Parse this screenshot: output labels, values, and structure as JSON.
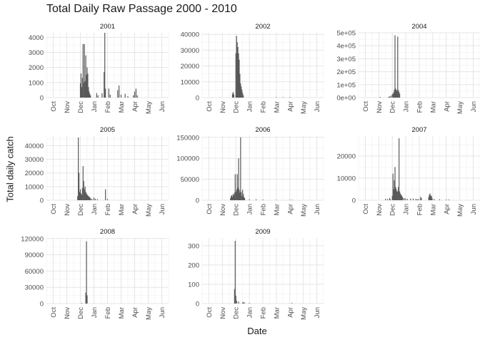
{
  "chart_data": {
    "type": "bar",
    "title": "Total Daily Raw Passage 2000 - 2010",
    "xlabel": "Date",
    "ylabel": "Total daily catch",
    "x_ticks": [
      "Oct",
      "Nov",
      "Dec",
      "Jan",
      "Feb",
      "Mar",
      "Apr",
      "May",
      "Jun"
    ],
    "x_range": [
      "Oct",
      "Jun"
    ],
    "grid": true,
    "bar_color": "#595959",
    "panels": [
      {
        "name": "2001",
        "ylim": [
          0,
          4300
        ],
        "y_ticks": [
          0,
          1000,
          2000,
          3000,
          4000
        ],
        "y_tick_labels": [
          "0",
          "1000",
          "2000",
          "3000",
          "4000"
        ],
        "bars": [
          [
            2.0,
            950
          ],
          [
            2.05,
            1600
          ],
          [
            2.1,
            700
          ],
          [
            2.15,
            1300
          ],
          [
            2.2,
            3550
          ],
          [
            2.25,
            1000
          ],
          [
            2.3,
            3550
          ],
          [
            2.35,
            1100
          ],
          [
            2.4,
            2800
          ],
          [
            2.45,
            1500
          ],
          [
            2.5,
            2000
          ],
          [
            2.55,
            1600
          ],
          [
            2.6,
            700
          ],
          [
            2.65,
            400
          ],
          [
            2.7,
            250
          ],
          [
            2.75,
            150
          ],
          [
            3.2,
            300
          ],
          [
            3.3,
            150
          ],
          [
            3.6,
            300
          ],
          [
            3.75,
            1700
          ],
          [
            3.8,
            4300
          ],
          [
            3.85,
            600
          ],
          [
            4.1,
            600
          ],
          [
            4.2,
            200
          ],
          [
            4.75,
            500
          ],
          [
            4.85,
            800
          ],
          [
            5.0,
            200
          ],
          [
            5.3,
            250
          ],
          [
            5.5,
            100
          ],
          [
            5.9,
            150
          ],
          [
            6.0,
            400
          ],
          [
            6.1,
            600
          ],
          [
            6.2,
            150
          ]
        ]
      },
      {
        "name": "2002",
        "ylim": [
          0,
          41000
        ],
        "y_ticks": [
          0,
          10000,
          20000,
          30000,
          40000
        ],
        "y_tick_labels": [
          "0",
          "10000",
          "20000",
          "30000",
          "40000"
        ],
        "bars": [
          [
            1.75,
            2500
          ],
          [
            1.8,
            3500
          ],
          [
            1.85,
            2000
          ],
          [
            2.0,
            28000
          ],
          [
            2.05,
            39000
          ],
          [
            2.1,
            35000
          ],
          [
            2.15,
            32000
          ],
          [
            2.2,
            28000
          ],
          [
            2.25,
            24000
          ],
          [
            2.3,
            15000
          ],
          [
            2.35,
            9000
          ],
          [
            2.4,
            7000
          ],
          [
            2.45,
            5000
          ],
          [
            2.5,
            3000
          ],
          [
            2.55,
            1500
          ],
          [
            5.0,
            300
          ],
          [
            5.5,
            300
          ],
          [
            6.0,
            250
          ]
        ]
      },
      {
        "name": "2004",
        "ylim": [
          0,
          500000
        ],
        "y_ticks": [
          0,
          100000,
          200000,
          300000,
          400000,
          500000
        ],
        "y_tick_labels": [
          "0e+00",
          "1e+05",
          "2e+05",
          "3e+05",
          "4e+05",
          "5e+05"
        ],
        "bars": [
          [
            1.1,
            5000
          ],
          [
            1.7,
            5000
          ],
          [
            1.8,
            10000
          ],
          [
            1.9,
            15000
          ],
          [
            2.0,
            25000
          ],
          [
            2.05,
            30000
          ],
          [
            2.1,
            40000
          ],
          [
            2.15,
            60000
          ],
          [
            2.2,
            480000
          ],
          [
            2.25,
            70000
          ],
          [
            2.3,
            60000
          ],
          [
            2.35,
            50000
          ],
          [
            2.4,
            470000
          ],
          [
            2.45,
            60000
          ],
          [
            2.5,
            45000
          ],
          [
            2.55,
            30000
          ]
        ]
      },
      {
        "name": "2005",
        "ylim": [
          0,
          47000
        ],
        "y_ticks": [
          0,
          10000,
          20000,
          30000,
          40000
        ],
        "y_tick_labels": [
          "0",
          "10000",
          "20000",
          "30000",
          "40000"
        ],
        "bars": [
          [
            1.8,
            3000
          ],
          [
            1.85,
            46000
          ],
          [
            1.9,
            20000
          ],
          [
            1.95,
            6000
          ],
          [
            2.0,
            8000
          ],
          [
            2.05,
            5000
          ],
          [
            2.1,
            4000
          ],
          [
            2.15,
            9000
          ],
          [
            2.2,
            25000
          ],
          [
            2.25,
            14000
          ],
          [
            2.3,
            8000
          ],
          [
            2.35,
            10000
          ],
          [
            2.4,
            6000
          ],
          [
            2.45,
            5000
          ],
          [
            2.5,
            4000
          ],
          [
            2.55,
            3500
          ],
          [
            2.6,
            3000
          ],
          [
            2.65,
            2500
          ],
          [
            2.7,
            2000
          ],
          [
            2.75,
            1500
          ],
          [
            2.85,
            1000
          ],
          [
            3.0,
            2000
          ],
          [
            3.1,
            1000
          ],
          [
            3.25,
            800
          ],
          [
            3.85,
            8000
          ],
          [
            4.0,
            800
          ]
        ]
      },
      {
        "name": "2006",
        "ylim": [
          0,
          153000
        ],
        "y_ticks": [
          0,
          50000,
          100000,
          150000
        ],
        "y_tick_labels": [
          "0",
          "50000",
          "100000",
          "150000"
        ],
        "bars": [
          [
            1.6,
            5000
          ],
          [
            1.65,
            10000
          ],
          [
            1.7,
            12000
          ],
          [
            1.75,
            8000
          ],
          [
            1.8,
            15000
          ],
          [
            1.85,
            12000
          ],
          [
            1.9,
            18000
          ],
          [
            1.95,
            62000
          ],
          [
            2.0,
            20000
          ],
          [
            2.05,
            25000
          ],
          [
            2.1,
            62000
          ],
          [
            2.15,
            30000
          ],
          [
            2.2,
            100000
          ],
          [
            2.25,
            25000
          ],
          [
            2.3,
            18000
          ],
          [
            2.35,
            150000
          ],
          [
            2.4,
            20000
          ],
          [
            2.45,
            10000
          ],
          [
            2.5,
            25000
          ],
          [
            2.55,
            15000
          ],
          [
            2.6,
            8000
          ],
          [
            2.65,
            5000
          ],
          [
            3.0,
            2000
          ],
          [
            3.5,
            2000
          ],
          [
            4.0,
            1500
          ],
          [
            5.0,
            1000
          ],
          [
            6.0,
            800
          ],
          [
            6.15,
            1000
          ]
        ]
      },
      {
        "name": "2007",
        "ylim": [
          0,
          29000
        ],
        "y_ticks": [
          0,
          10000,
          20000
        ],
        "y_tick_labels": [
          "0",
          "10000",
          "20000"
        ],
        "bars": [
          [
            1.5,
            600
          ],
          [
            1.65,
            500
          ],
          [
            1.8,
            1000
          ],
          [
            1.85,
            400
          ],
          [
            2.0,
            2000
          ],
          [
            2.05,
            12000
          ],
          [
            2.1,
            5000
          ],
          [
            2.15,
            9000
          ],
          [
            2.2,
            15000
          ],
          [
            2.25,
            6000
          ],
          [
            2.3,
            5000
          ],
          [
            2.35,
            4000
          ],
          [
            2.4,
            4000
          ],
          [
            2.45,
            6000
          ],
          [
            2.5,
            28000
          ],
          [
            2.55,
            4000
          ],
          [
            2.6,
            3000
          ],
          [
            2.65,
            2500
          ],
          [
            2.7,
            2000
          ],
          [
            2.75,
            1500
          ],
          [
            2.85,
            1000
          ],
          [
            2.95,
            800
          ],
          [
            3.1,
            700
          ],
          [
            3.35,
            700
          ],
          [
            3.55,
            700
          ],
          [
            3.75,
            600
          ],
          [
            3.85,
            400
          ],
          [
            3.95,
            500
          ],
          [
            4.1,
            1500
          ],
          [
            4.15,
            1000
          ],
          [
            4.7,
            1500
          ],
          [
            4.75,
            2500
          ],
          [
            4.8,
            3000
          ],
          [
            4.85,
            2000
          ],
          [
            4.9,
            2000
          ],
          [
            4.95,
            1000
          ],
          [
            5.1,
            500
          ],
          [
            5.5,
            400
          ],
          [
            6.0,
            300
          ],
          [
            6.2,
            300
          ]
        ]
      },
      {
        "name": "2008",
        "ylim": [
          0,
          121000
        ],
        "y_ticks": [
          0,
          30000,
          60000,
          90000,
          120000
        ],
        "y_tick_labels": [
          "0",
          "30000",
          "60000",
          "90000",
          "120000"
        ],
        "bars": [
          [
            2.1,
            1000
          ],
          [
            2.4,
            20000
          ],
          [
            2.45,
            115000
          ],
          [
            2.5,
            15000
          ]
        ]
      },
      {
        "name": "2009",
        "ylim": [
          0,
          340
        ],
        "y_ticks": [
          0,
          100,
          200,
          300
        ],
        "y_tick_labels": [
          "0",
          "100",
          "200",
          "300"
        ],
        "bars": [
          [
            1.9,
            75
          ],
          [
            1.95,
            325
          ],
          [
            2.0,
            40
          ],
          [
            2.05,
            15
          ],
          [
            2.2,
            10
          ],
          [
            2.5,
            5
          ],
          [
            2.55,
            8
          ],
          [
            2.65,
            5
          ],
          [
            3.0,
            3
          ],
          [
            6.15,
            3
          ]
        ]
      }
    ]
  }
}
